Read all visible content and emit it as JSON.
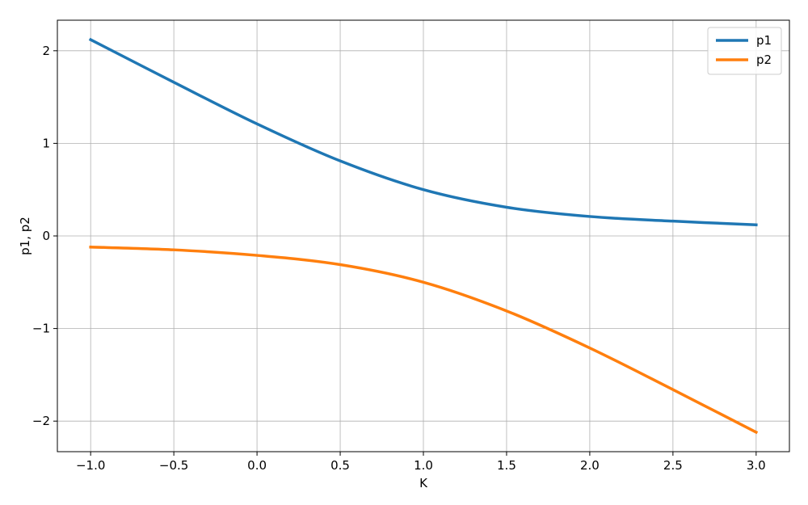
{
  "chart_data": {
    "type": "line",
    "xlabel": "K",
    "ylabel": "p1, p2",
    "xlim": [
      -1.2,
      3.2
    ],
    "ylim": [
      -2.33,
      2.33
    ],
    "x_ticks": [
      -1.0,
      -0.5,
      0.0,
      0.5,
      1.0,
      1.5,
      2.0,
      2.5,
      3.0
    ],
    "x_tick_labels": [
      "−1.0",
      "−0.5",
      "0.0",
      "0.5",
      "1.0",
      "1.5",
      "2.0",
      "2.5",
      "3.0"
    ],
    "y_ticks": [
      -2,
      -1,
      0,
      1,
      2
    ],
    "y_tick_labels": [
      "−2",
      "−1",
      "0",
      "1",
      "2"
    ],
    "grid": true,
    "legend_position": "top-right",
    "series": [
      {
        "name": "p1",
        "color": "#1f77b4",
        "x": [
          -1.0,
          -0.5,
          0.0,
          0.5,
          1.0,
          1.5,
          2.0,
          2.5,
          3.0
        ],
        "y": [
          2.12,
          1.66,
          1.21,
          0.81,
          0.5,
          0.31,
          0.21,
          0.16,
          0.12
        ]
      },
      {
        "name": "p2",
        "color": "#ff7f0e",
        "x": [
          -1.0,
          -0.5,
          0.0,
          0.5,
          1.0,
          1.5,
          2.0,
          2.5,
          3.0
        ],
        "y": [
          -0.12,
          -0.15,
          -0.21,
          -0.31,
          -0.5,
          -0.81,
          -1.21,
          -1.66,
          -2.12
        ]
      }
    ]
  }
}
